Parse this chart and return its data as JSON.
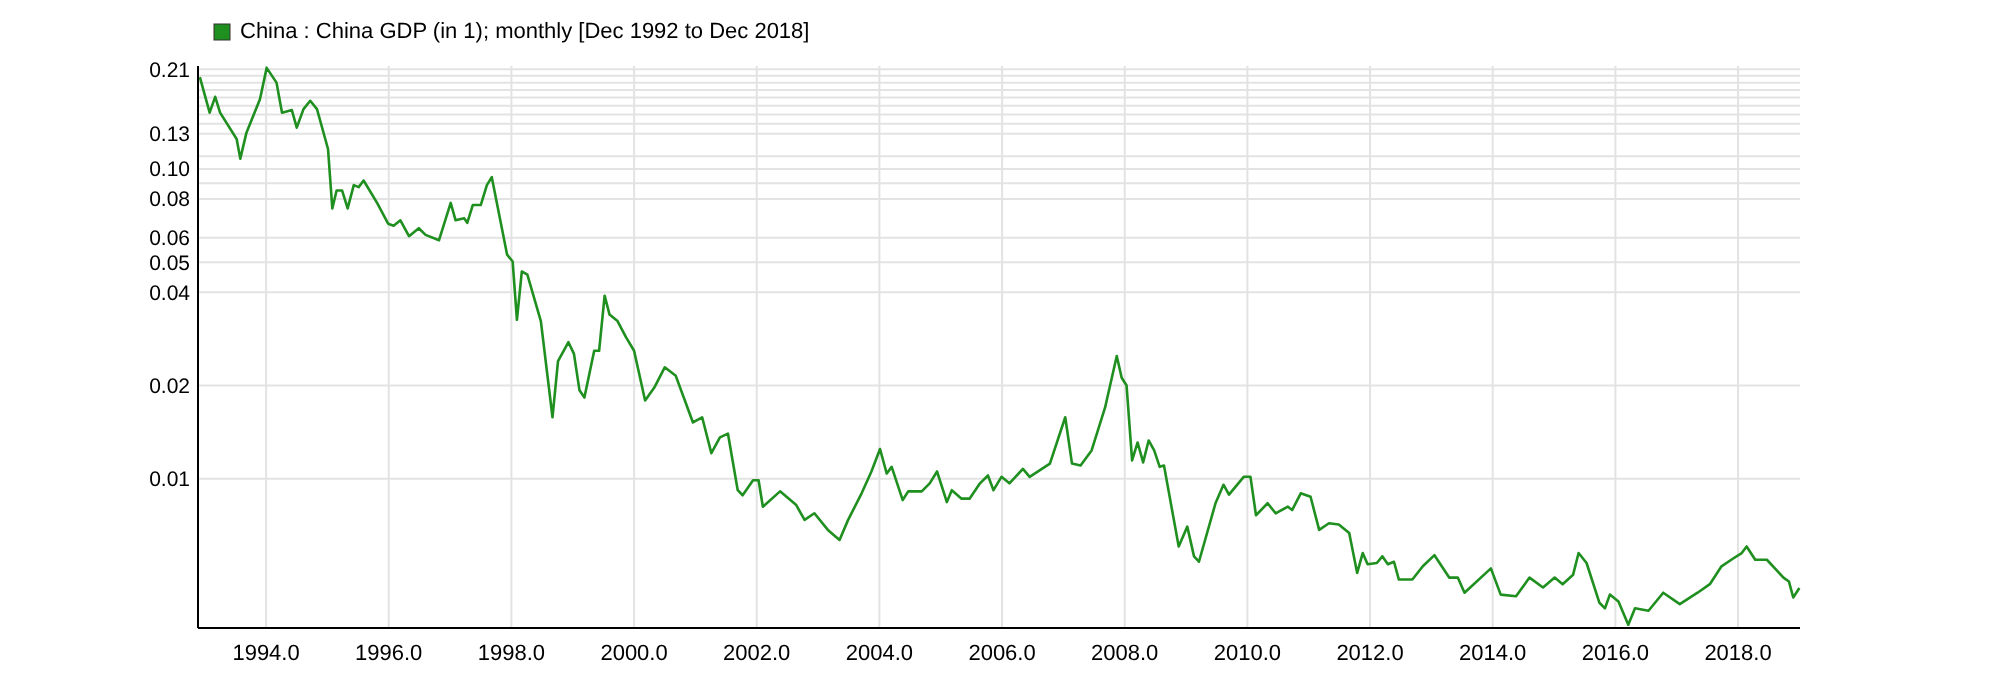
{
  "chart_data": {
    "type": "line",
    "legend": "top left",
    "grid": true,
    "log": "y",
    "xlim": [
      1992.89,
      2019.01
    ],
    "ylim": [
      0.0033,
      0.215
    ],
    "xticks": [
      {
        "value": 1994,
        "label": "1994.0"
      },
      {
        "value": 1996,
        "label": "1996.0"
      },
      {
        "value": 1998,
        "label": "1998.0"
      },
      {
        "value": 2000,
        "label": "2000.0"
      },
      {
        "value": 2002,
        "label": "2002.0"
      },
      {
        "value": 2004,
        "label": "2004.0"
      },
      {
        "value": 2006,
        "label": "2006.0"
      },
      {
        "value": 2008,
        "label": "2008.0"
      },
      {
        "value": 2010,
        "label": "2010.0"
      },
      {
        "value": 2012,
        "label": "2012.0"
      },
      {
        "value": 2014,
        "label": "2014.0"
      },
      {
        "value": 2016,
        "label": "2016.0"
      },
      {
        "value": 2018,
        "label": "2018.0"
      }
    ],
    "yticks": [
      {
        "value": 0.01,
        "label": "0.01"
      },
      {
        "value": 0.02,
        "label": "0.02"
      },
      {
        "value": 0.04,
        "label": "0.04"
      },
      {
        "value": 0.05,
        "label": "0.05"
      },
      {
        "value": 0.06,
        "label": "0.06"
      },
      {
        "value": 0.08,
        "label": "0.08"
      },
      {
        "value": 0.09,
        "label": null
      },
      {
        "value": 0.1,
        "label": "0.10"
      },
      {
        "value": 0.11,
        "label": null
      },
      {
        "value": 0.13,
        "label": "0.13"
      },
      {
        "value": 0.14,
        "label": null
      },
      {
        "value": 0.15,
        "label": null
      },
      {
        "value": 0.16,
        "label": null
      },
      {
        "value": 0.17,
        "label": null
      },
      {
        "value": 0.18,
        "label": null
      },
      {
        "value": 0.19,
        "label": null
      },
      {
        "value": 0.2,
        "label": null
      },
      {
        "value": 0.21,
        "label": "0.21"
      }
    ],
    "series": [
      {
        "name": "China : China GDP (in 1); monthly [Dec 1992 to Dec 2018]",
        "color": "#1f8f1f",
        "x": [
          1992.92,
          1993.08,
          1993.17,
          1993.25,
          1993.52,
          1993.58,
          1993.68,
          1993.9,
          1994.01,
          1994.17,
          1994.26,
          1994.42,
          1994.5,
          1994.61,
          1994.72,
          1994.83,
          1995.01,
          1995.08,
          1995.15,
          1995.24,
          1995.33,
          1995.43,
          1995.51,
          1995.59,
          1995.81,
          1995.99,
          1996.08,
          1996.19,
          1996.33,
          1996.49,
          1996.6,
          1996.82,
          1997.01,
          1997.09,
          1997.23,
          1997.28,
          1997.37,
          1997.5,
          1997.6,
          1997.68,
          1997.93,
          1998.02,
          1998.09,
          1998.17,
          1998.26,
          1998.48,
          1998.67,
          1998.76,
          1998.93,
          1999.02,
          1999.11,
          1999.19,
          1999.35,
          1999.43,
          1999.52,
          1999.6,
          1999.73,
          1999.87,
          2000.0,
          2000.18,
          2000.33,
          2000.5,
          2000.68,
          2000.81,
          2000.96,
          2001.11,
          2001.26,
          2001.4,
          2001.53,
          2001.69,
          2001.77,
          2001.94,
          2002.03,
          2002.1,
          2002.38,
          2002.64,
          2002.78,
          2002.94,
          2003.16,
          2003.35,
          2003.49,
          2003.71,
          2003.87,
          2004.01,
          2004.12,
          2004.2,
          2004.38,
          2004.47,
          2004.69,
          2004.82,
          2004.94,
          2005.1,
          2005.18,
          2005.34,
          2005.47,
          2005.64,
          2005.77,
          2005.86,
          2005.99,
          2006.12,
          2006.34,
          2006.45,
          2006.78,
          2007.03,
          2007.14,
          2007.28,
          2007.46,
          2007.68,
          2007.87,
          2007.95,
          2008.03,
          2008.12,
          2008.21,
          2008.3,
          2008.39,
          2008.48,
          2008.57,
          2008.64,
          2008.88,
          2009.02,
          2009.13,
          2009.21,
          2009.48,
          2009.61,
          2009.7,
          2009.94,
          2010.05,
          2010.14,
          2010.33,
          2010.46,
          2010.66,
          2010.73,
          2010.87,
          2011.03,
          2011.17,
          2011.33,
          2011.49,
          2011.66,
          2011.79,
          2011.88,
          2011.96,
          2012.11,
          2012.2,
          2012.29,
          2012.39,
          2012.47,
          2012.69,
          2012.86,
          2013.05,
          2013.29,
          2013.43,
          2013.54,
          2013.97,
          2014.13,
          2014.38,
          2014.6,
          2014.82,
          2015.01,
          2015.14,
          2015.31,
          2015.4,
          2015.53,
          2015.74,
          2015.83,
          2015.91,
          2016.05,
          2016.21,
          2016.32,
          2016.54,
          2016.78,
          2017.05,
          2017.34,
          2017.54,
          2017.73,
          2017.92,
          2018.06,
          2018.14,
          2018.28,
          2018.47,
          2018.74,
          2018.83,
          2018.9,
          2019.0
        ],
        "values": [
          0.198,
          0.152,
          0.171,
          0.152,
          0.125,
          0.108,
          0.131,
          0.168,
          0.212,
          0.19,
          0.152,
          0.155,
          0.136,
          0.156,
          0.166,
          0.156,
          0.116,
          0.0746,
          0.0852,
          0.0852,
          0.0746,
          0.0887,
          0.0874,
          0.0918,
          0.0777,
          0.0666,
          0.0656,
          0.0683,
          0.0607,
          0.0644,
          0.0613,
          0.0589,
          0.0777,
          0.0683,
          0.0693,
          0.067,
          0.0765,
          0.0765,
          0.0887,
          0.0941,
          0.0529,
          0.0503,
          0.0326,
          0.0467,
          0.0456,
          0.0323,
          0.0158,
          0.024,
          0.0276,
          0.0253,
          0.0193,
          0.0183,
          0.0259,
          0.0259,
          0.039,
          0.0339,
          0.0323,
          0.0286,
          0.0259,
          0.0179,
          0.0197,
          0.0229,
          0.0215,
          0.0183,
          0.0152,
          0.0158,
          0.0121,
          0.0136,
          0.014,
          0.00919,
          0.00885,
          0.0099,
          0.0099,
          0.00813,
          0.00911,
          0.00825,
          0.00737,
          0.00774,
          0.00684,
          0.00635,
          0.00737,
          0.00898,
          0.01056,
          0.01248,
          0.0104,
          0.01093,
          0.00854,
          0.00911,
          0.00911,
          0.00967,
          0.01056,
          0.00841,
          0.00919,
          0.00863,
          0.00863,
          0.00967,
          0.01025,
          0.00919,
          0.01015,
          0.00967,
          0.01077,
          0.01015,
          0.0112,
          0.0158,
          0.0112,
          0.01104,
          0.01235,
          0.017,
          0.0249,
          0.0212,
          0.02,
          0.01147,
          0.0131,
          0.0113,
          0.0133,
          0.01235,
          0.01093,
          0.01104,
          0.00605,
          0.00701,
          0.00562,
          0.0054,
          0.00834,
          0.00957,
          0.00889,
          0.01015,
          0.01015,
          0.00763,
          0.00834,
          0.00774,
          0.00813,
          0.00793,
          0.00898,
          0.00875,
          0.00684,
          0.00719,
          0.00712,
          0.00668,
          0.00497,
          0.00576,
          0.0053,
          0.00535,
          0.00562,
          0.0053,
          0.0054,
          0.00473,
          0.00473,
          0.00522,
          0.00567,
          0.0048,
          0.0048,
          0.00429,
          0.00514,
          0.00423,
          0.00418,
          0.0048,
          0.00446,
          0.0048,
          0.00457,
          0.0049,
          0.00576,
          0.00535,
          0.00398,
          0.00382,
          0.00423,
          0.00402,
          0.00338,
          0.00382,
          0.00375,
          0.00429,
          0.00394,
          0.00429,
          0.00457,
          0.00522,
          0.00553,
          0.00576,
          0.00605,
          0.00548,
          0.00548,
          0.0048,
          0.00466,
          0.00414,
          0.00444
        ]
      }
    ]
  }
}
